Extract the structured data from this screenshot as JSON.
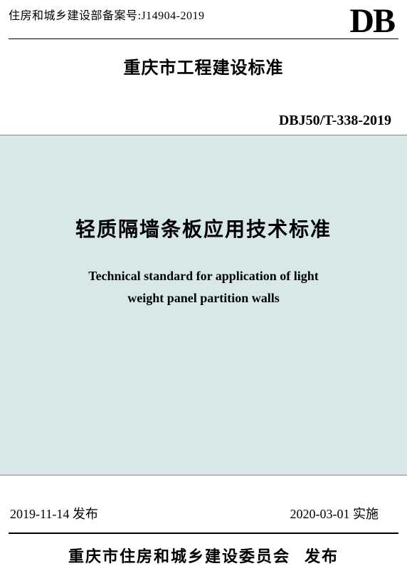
{
  "header": {
    "record_label": "住房和城乡建设部备案号:",
    "record_value": "J14904-2019",
    "logo": "DB"
  },
  "city_standard": "重庆市工程建设标准",
  "code": "DBJ50/T-338-2019",
  "panel": {
    "title_zh": "轻质隔墙条板应用技术标准",
    "title_en_line1": "Technical standard for application of light",
    "title_en_line2": "weight panel partition walls",
    "background_color": "#d8e8e8"
  },
  "dates": {
    "issue": "2019-11-14 发布",
    "effective": "2020-03-01 实施"
  },
  "publisher": {
    "org": "重庆市住房和城乡建设委员会",
    "action": "发布"
  },
  "colors": {
    "text": "#000000",
    "page_bg": "#ffffff",
    "panel_border": "#888888"
  },
  "fontsizes": {
    "record": 16,
    "logo": 48,
    "city_standard": 24,
    "code": 20,
    "title_zh": 28,
    "title_en": 18,
    "dates": 18,
    "publisher": 22
  }
}
